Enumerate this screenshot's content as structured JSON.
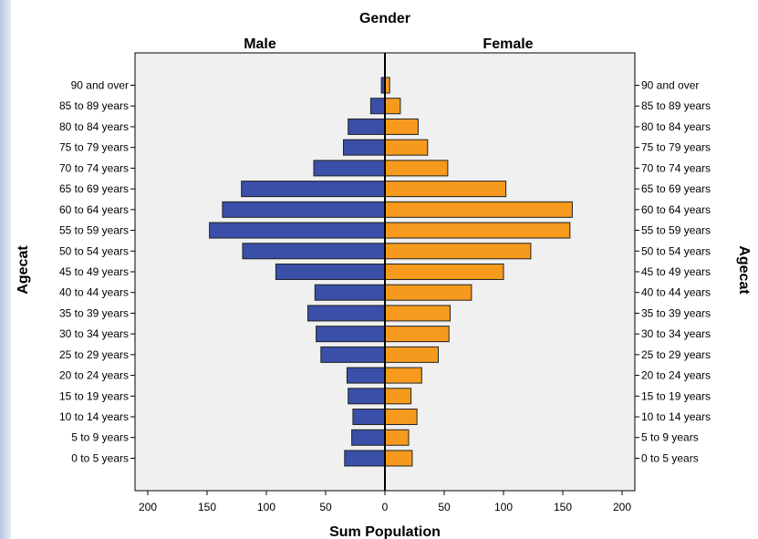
{
  "chart_data": {
    "type": "bar",
    "orientation": "horizontal",
    "title": "Gender",
    "xlabel": "Sum Population",
    "ylabel": "Agecat",
    "xlim": [
      0,
      200
    ],
    "xticks": [
      0,
      50,
      100,
      150,
      200
    ],
    "categories": [
      "0 to 5 years",
      "5 to 9 years",
      "10 to 14 years",
      "15 to 19 years",
      "20 to 24 years",
      "25 to 29 years",
      "30 to 34 years",
      "35 to 39 years",
      "40 to 44 years",
      "45 to 49 years",
      "50 to 54 years",
      "55 to 59 years",
      "60 to 64 years",
      "65 to 69 years",
      "70 to 74 years",
      "75 to 79 years",
      "80 to 84 years",
      "85 to 89 years",
      "90 and over"
    ],
    "series": [
      {
        "name": "Male",
        "color": "#3a4fa8",
        "values": [
          34,
          28,
          27,
          31,
          32,
          54,
          58,
          65,
          59,
          92,
          120,
          148,
          137,
          121,
          60,
          35,
          31,
          12,
          3
        ]
      },
      {
        "name": "Female",
        "color": "#f59a1d",
        "values": [
          23,
          20,
          27,
          22,
          31,
          45,
          54,
          55,
          73,
          100,
          123,
          156,
          158,
          102,
          53,
          36,
          28,
          13,
          4
        ]
      }
    ],
    "grid": false,
    "legend": "none"
  }
}
